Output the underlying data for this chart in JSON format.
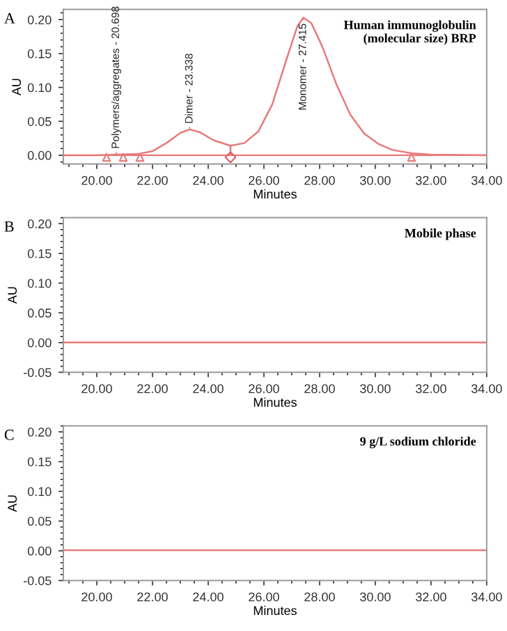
{
  "chart_data": [
    {
      "type": "line",
      "title": "A",
      "xlabel": "Minutes",
      "ylabel": "AU",
      "xlim": [
        18.8,
        34
      ],
      "xticks": [
        {
          "value": 20,
          "label": "20.00"
        },
        {
          "value": 22,
          "label": "22.00"
        },
        {
          "value": 24,
          "label": "24.00"
        },
        {
          "value": 26,
          "label": "26.00"
        },
        {
          "value": 28,
          "label": "28.00"
        },
        {
          "value": 30,
          "label": "30.00"
        },
        {
          "value": 32,
          "label": "32.00"
        },
        {
          "value": 34,
          "label": "34.00"
        }
      ],
      "ylim": [
        -0.013,
        0.215
      ],
      "yticks": [
        {
          "value": 0,
          "label": "0.00"
        },
        {
          "value": 0.05,
          "label": "0.05"
        },
        {
          "value": 0.1,
          "label": "0.10"
        },
        {
          "value": 0.15,
          "label": "0.15"
        },
        {
          "value": 0.2,
          "label": "0.20"
        }
      ],
      "grid": false,
      "legend": false,
      "ref_lines": [
        {
          "axis": "y",
          "value": 0,
          "label": null,
          "color": "#e87a7a"
        }
      ],
      "annotations": [
        "Human immunoglobulin\n(molecular size) BRP",
        {
          "text": "Polymers/aggregates - 20.698",
          "x": 20.698,
          "y": 0.001
        },
        {
          "text": "Dimer - 23.338",
          "x": 23.338,
          "y": 0.038
        },
        {
          "text": "Monomer - 27.415",
          "x": 27.415,
          "y": 0.203
        }
      ],
      "series": [
        {
          "type": "line",
          "color": "#e87a7a",
          "x": [
            18.8,
            20.0,
            20.7,
            21.5,
            22.0,
            22.5,
            23.0,
            23.338,
            23.7,
            24.2,
            24.8,
            25.3,
            25.8,
            26.3,
            26.8,
            27.2,
            27.415,
            27.7,
            28.1,
            28.6,
            29.1,
            29.6,
            30.1,
            30.6,
            31.3,
            32.0,
            34.0
          ],
          "values": [
            0,
            0,
            0.001,
            0.002,
            0.006,
            0.018,
            0.033,
            0.038,
            0.034,
            0.022,
            0.014,
            0.018,
            0.035,
            0.075,
            0.14,
            0.19,
            0.203,
            0.195,
            0.16,
            0.105,
            0.06,
            0.032,
            0.017,
            0.008,
            0.003,
            0.001,
            0
          ]
        },
        {
          "type": "line",
          "color": "#e87a7a",
          "x": [
            24.8,
            24.8
          ],
          "values": [
            0,
            0.014
          ]
        },
        {
          "type": "scatter",
          "marker": "triangle",
          "color": "#e87a7a",
          "x": [
            20.35,
            20.95,
            21.55,
            31.3
          ],
          "values": [
            -0.003,
            -0.003,
            -0.003,
            -0.003
          ]
        },
        {
          "type": "scatter",
          "marker": "diamond",
          "color": "#e06060",
          "x": [
            24.8
          ],
          "values": [
            -0.003
          ]
        }
      ]
    },
    {
      "type": "line",
      "title": "B",
      "xlabel": "Minutes",
      "ylabel": "AU",
      "xlim": [
        18.8,
        34
      ],
      "xticks": [
        {
          "value": 20,
          "label": "20.00"
        },
        {
          "value": 22,
          "label": "22.00"
        },
        {
          "value": 24,
          "label": "24.00"
        },
        {
          "value": 26,
          "label": "26.00"
        },
        {
          "value": 28,
          "label": "28.00"
        },
        {
          "value": 30,
          "label": "30.00"
        },
        {
          "value": 32,
          "label": "32.00"
        },
        {
          "value": 34,
          "label": "34.00"
        }
      ],
      "ylim": [
        -0.05,
        0.21
      ],
      "yticks": [
        {
          "value": -0.05,
          "label": "-0.05"
        },
        {
          "value": 0,
          "label": "0.00"
        },
        {
          "value": 0.05,
          "label": "0.05"
        },
        {
          "value": 0.1,
          "label": "0.10"
        },
        {
          "value": 0.15,
          "label": "0.15"
        },
        {
          "value": 0.2,
          "label": "0.20"
        }
      ],
      "grid": false,
      "legend": false,
      "annotations": [
        "Mobile phase"
      ],
      "series": [
        {
          "type": "line",
          "color": "#e87a7a",
          "x": [
            18.8,
            26.0,
            34.0
          ],
          "values": [
            0,
            0,
            0
          ]
        }
      ]
    },
    {
      "type": "line",
      "title": "C",
      "xlabel": "Minutes",
      "ylabel": "AU",
      "xlim": [
        18.8,
        34
      ],
      "xticks": [
        {
          "value": 20,
          "label": "20.00"
        },
        {
          "value": 22,
          "label": "22.00"
        },
        {
          "value": 24,
          "label": "24.00"
        },
        {
          "value": 26,
          "label": "26.00"
        },
        {
          "value": 28,
          "label": "28.00"
        },
        {
          "value": 30,
          "label": "30.00"
        },
        {
          "value": 32,
          "label": "32.00"
        },
        {
          "value": 34,
          "label": "34.00"
        }
      ],
      "ylim": [
        -0.05,
        0.21
      ],
      "yticks": [
        {
          "value": -0.05,
          "label": "-0.05"
        },
        {
          "value": 0,
          "label": "0.00"
        },
        {
          "value": 0.05,
          "label": "0.05"
        },
        {
          "value": 0.1,
          "label": "0.10"
        },
        {
          "value": 0.15,
          "label": "0.15"
        },
        {
          "value": 0.2,
          "label": "0.20"
        }
      ],
      "grid": false,
      "legend": false,
      "annotations": [
        "9 g/L sodium chloride"
      ],
      "series": [
        {
          "type": "line",
          "color": "#e87a7a",
          "x": [
            18.8,
            26.0,
            34.0
          ],
          "values": [
            0.001,
            0.001,
            0.001
          ]
        }
      ]
    }
  ]
}
